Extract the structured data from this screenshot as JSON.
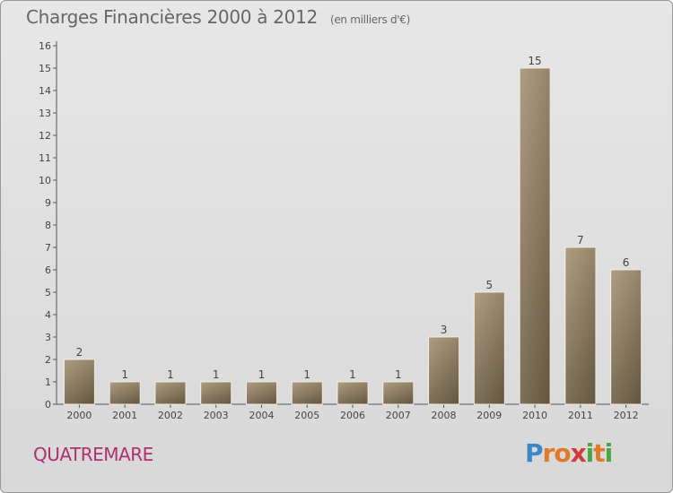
{
  "header": {
    "title": "Charges Financières 2000 à 2012",
    "subtitle": "(en milliers d'€)"
  },
  "town": "QUATREMARE",
  "logo": {
    "letters": [
      "P",
      "r",
      "o",
      "x",
      "i",
      "t",
      "i"
    ],
    "colors": [
      "#3a88c8",
      "#e07a2a",
      "#e07a2a",
      "#d23b3b",
      "#4aa844",
      "#e07a2a",
      "#4aa844"
    ]
  },
  "chart_data": {
    "type": "bar",
    "title": "Charges Financières 2000 à 2012",
    "subtitle": "(en milliers d'€)",
    "categories": [
      "2000",
      "2001",
      "2002",
      "2003",
      "2004",
      "2005",
      "2006",
      "2007",
      "2008",
      "2009",
      "2010",
      "2011",
      "2012"
    ],
    "values": [
      2,
      1,
      1,
      1,
      1,
      1,
      1,
      1,
      3,
      5,
      15,
      7,
      6
    ],
    "ylim": [
      0,
      16
    ],
    "yticks": [
      0,
      1,
      2,
      3,
      4,
      5,
      6,
      7,
      8,
      9,
      10,
      11,
      12,
      13,
      14,
      15,
      16
    ],
    "bar_color": "#8c7a5e",
    "grid": false
  }
}
